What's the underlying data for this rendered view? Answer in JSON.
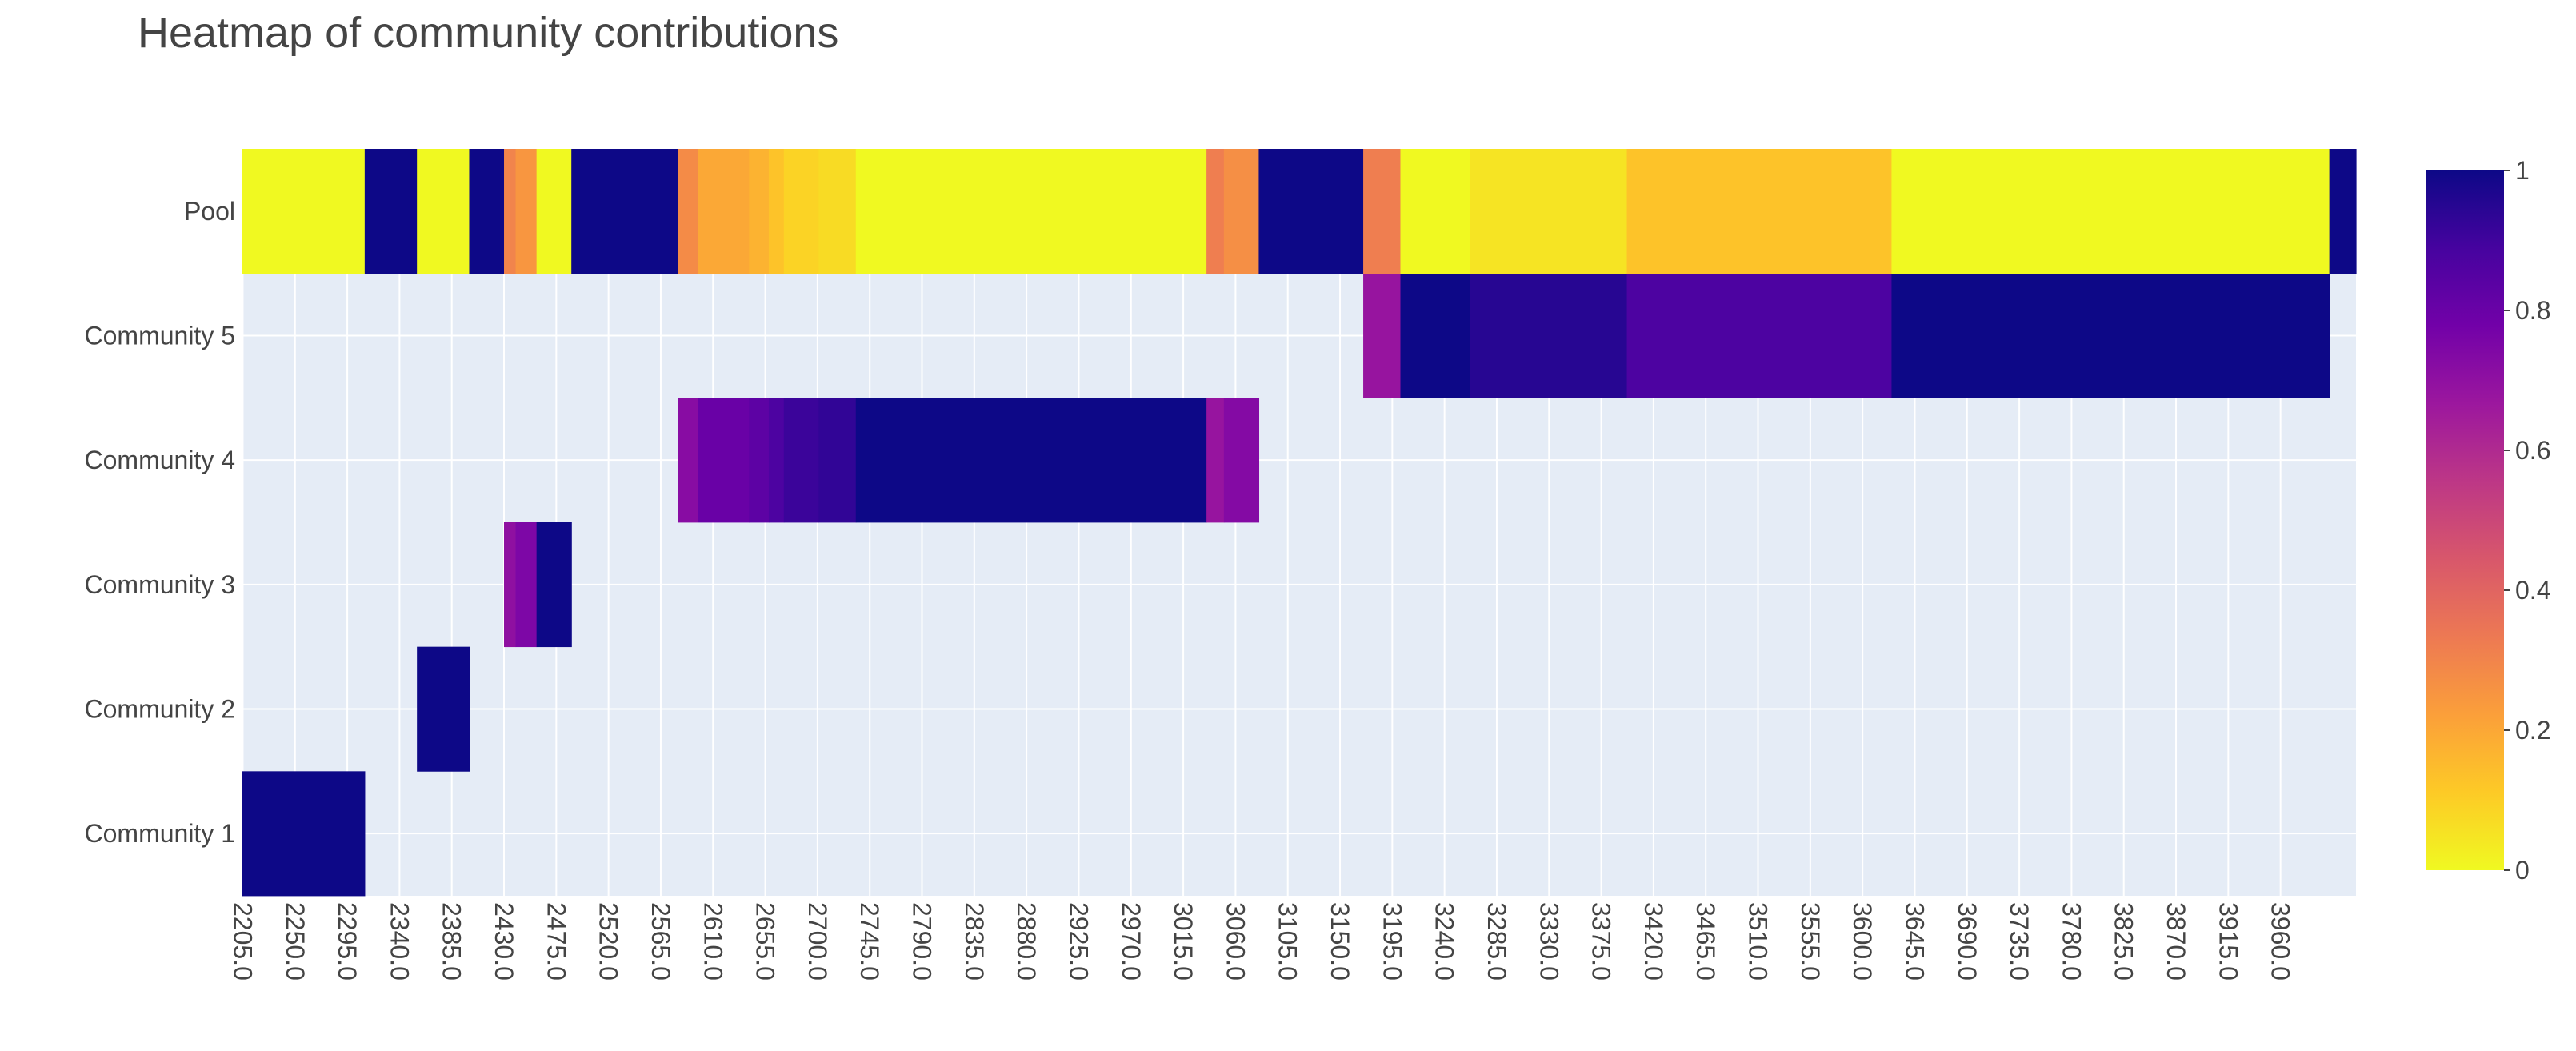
{
  "chart_data": {
    "type": "heatmap",
    "title": "Heatmap of community contributions",
    "x": [
      2205,
      2250,
      2295,
      2340,
      2385,
      2430,
      2475,
      2520,
      2565,
      2610,
      2655,
      2700,
      2745,
      2790,
      2835,
      2880,
      2925,
      2970,
      3015,
      3060,
      3105,
      3150,
      3195,
      3240,
      3285,
      3330,
      3375,
      3420,
      3465,
      3510,
      3555,
      3600,
      3645,
      3690,
      3735,
      3780,
      3825,
      3870,
      3915,
      3960
    ],
    "x_tick_labels": [
      "2205.0",
      "2250.0",
      "2295.0",
      "2340.0",
      "2385.0",
      "2430.0",
      "2475.0",
      "2520.0",
      "2565.0",
      "2610.0",
      "2655.0",
      "2700.0",
      "2745.0",
      "2790.0",
      "2835.0",
      "2880.0",
      "2925.0",
      "2970.0",
      "3015.0",
      "3060.0",
      "3105.0",
      "3150.0",
      "3195.0",
      "3240.0",
      "3285.0",
      "3330.0",
      "3375.0",
      "3420.0",
      "3465.0",
      "3510.0",
      "3555.0",
      "3600.0",
      "3645.0",
      "3690.0",
      "3735.0",
      "3780.0",
      "3825.0",
      "3870.0",
      "3915.0",
      "3960.0"
    ],
    "x_range": [
      2204,
      4025
    ],
    "y_categories": [
      "Community 1",
      "Community 2",
      "Community 3",
      "Community 4",
      "Community 5",
      "Pool"
    ],
    "colorscale": "Plasma",
    "colorbar": {
      "ticks": [
        0,
        0.2,
        0.4,
        0.6,
        0.8,
        1
      ],
      "tick_labels": [
        "0",
        "0.2",
        "0.4",
        "0.6",
        "0.8",
        "1"
      ]
    },
    "cells": [
      {
        "row": "Community 1",
        "x0": 2204,
        "x1": 2310,
        "value": 1
      },
      {
        "row": "Pool",
        "x0": 2204,
        "x1": 2310,
        "value": 0
      },
      {
        "row": "Pool",
        "x0": 2310,
        "x1": 2355,
        "value": 1
      },
      {
        "row": "Pool",
        "x0": 2355,
        "x1": 2400,
        "value": 0
      },
      {
        "row": "Community 2",
        "x0": 2355,
        "x1": 2400,
        "value": 1
      },
      {
        "row": "Pool",
        "x0": 2400,
        "x1": 2430,
        "value": 1
      },
      {
        "row": "Community 3",
        "x0": 2430,
        "x1": 2440,
        "value": 0.7
      },
      {
        "row": "Pool",
        "x0": 2430,
        "x1": 2440,
        "value": 0.3
      },
      {
        "row": "Community 3",
        "x0": 2440,
        "x1": 2458,
        "value": 0.75
      },
      {
        "row": "Pool",
        "x0": 2440,
        "x1": 2458,
        "value": 0.25
      },
      {
        "row": "Community 3",
        "x0": 2458,
        "x1": 2488,
        "value": 1
      },
      {
        "row": "Pool",
        "x0": 2458,
        "x1": 2488,
        "value": 0
      },
      {
        "row": "Pool",
        "x0": 2488,
        "x1": 2580,
        "value": 1
      },
      {
        "row": "Community 4",
        "x0": 2580,
        "x1": 2597,
        "value": 0.72
      },
      {
        "row": "Pool",
        "x0": 2580,
        "x1": 2597,
        "value": 0.28
      },
      {
        "row": "Community 4",
        "x0": 2597,
        "x1": 2641,
        "value": 0.8
      },
      {
        "row": "Pool",
        "x0": 2597,
        "x1": 2641,
        "value": 0.2
      },
      {
        "row": "Community 4",
        "x0": 2641,
        "x1": 2658,
        "value": 0.83
      },
      {
        "row": "Pool",
        "x0": 2641,
        "x1": 2658,
        "value": 0.17
      },
      {
        "row": "Community 4",
        "x0": 2658,
        "x1": 2671,
        "value": 0.87
      },
      {
        "row": "Pool",
        "x0": 2658,
        "x1": 2671,
        "value": 0.13
      },
      {
        "row": "Community 4",
        "x0": 2671,
        "x1": 2701,
        "value": 0.91
      },
      {
        "row": "Pool",
        "x0": 2671,
        "x1": 2701,
        "value": 0.09
      },
      {
        "row": "Community 4",
        "x0": 2701,
        "x1": 2733,
        "value": 0.93
      },
      {
        "row": "Pool",
        "x0": 2701,
        "x1": 2733,
        "value": 0.07
      },
      {
        "row": "Community 4",
        "x0": 2733,
        "x1": 3035,
        "value": 1
      },
      {
        "row": "Pool",
        "x0": 2733,
        "x1": 3035,
        "value": 0
      },
      {
        "row": "Community 4",
        "x0": 3035,
        "x1": 3050,
        "value": 0.68
      },
      {
        "row": "Pool",
        "x0": 3035,
        "x1": 3050,
        "value": 0.32
      },
      {
        "row": "Community 4",
        "x0": 3050,
        "x1": 3080,
        "value": 0.73
      },
      {
        "row": "Pool",
        "x0": 3050,
        "x1": 3080,
        "value": 0.27
      },
      {
        "row": "Pool",
        "x0": 3080,
        "x1": 3170,
        "value": 1
      },
      {
        "row": "Community 5",
        "x0": 3170,
        "x1": 3202,
        "value": 0.68
      },
      {
        "row": "Pool",
        "x0": 3170,
        "x1": 3202,
        "value": 0.32
      },
      {
        "row": "Community 5",
        "x0": 3202,
        "x1": 3262,
        "value": 1
      },
      {
        "row": "Pool",
        "x0": 3202,
        "x1": 3262,
        "value": 0
      },
      {
        "row": "Community 5",
        "x0": 3262,
        "x1": 3397,
        "value": 0.95
      },
      {
        "row": "Pool",
        "x0": 3262,
        "x1": 3397,
        "value": 0.05
      },
      {
        "row": "Community 5",
        "x0": 3397,
        "x1": 3625,
        "value": 0.87
      },
      {
        "row": "Pool",
        "x0": 3397,
        "x1": 3625,
        "value": 0.13
      },
      {
        "row": "Community 5",
        "x0": 3625,
        "x1": 4002,
        "value": 1
      },
      {
        "row": "Pool",
        "x0": 3625,
        "x1": 4002,
        "value": 0
      },
      {
        "row": "Pool",
        "x0": 4002,
        "x1": 4025,
        "value": 1
      }
    ]
  }
}
